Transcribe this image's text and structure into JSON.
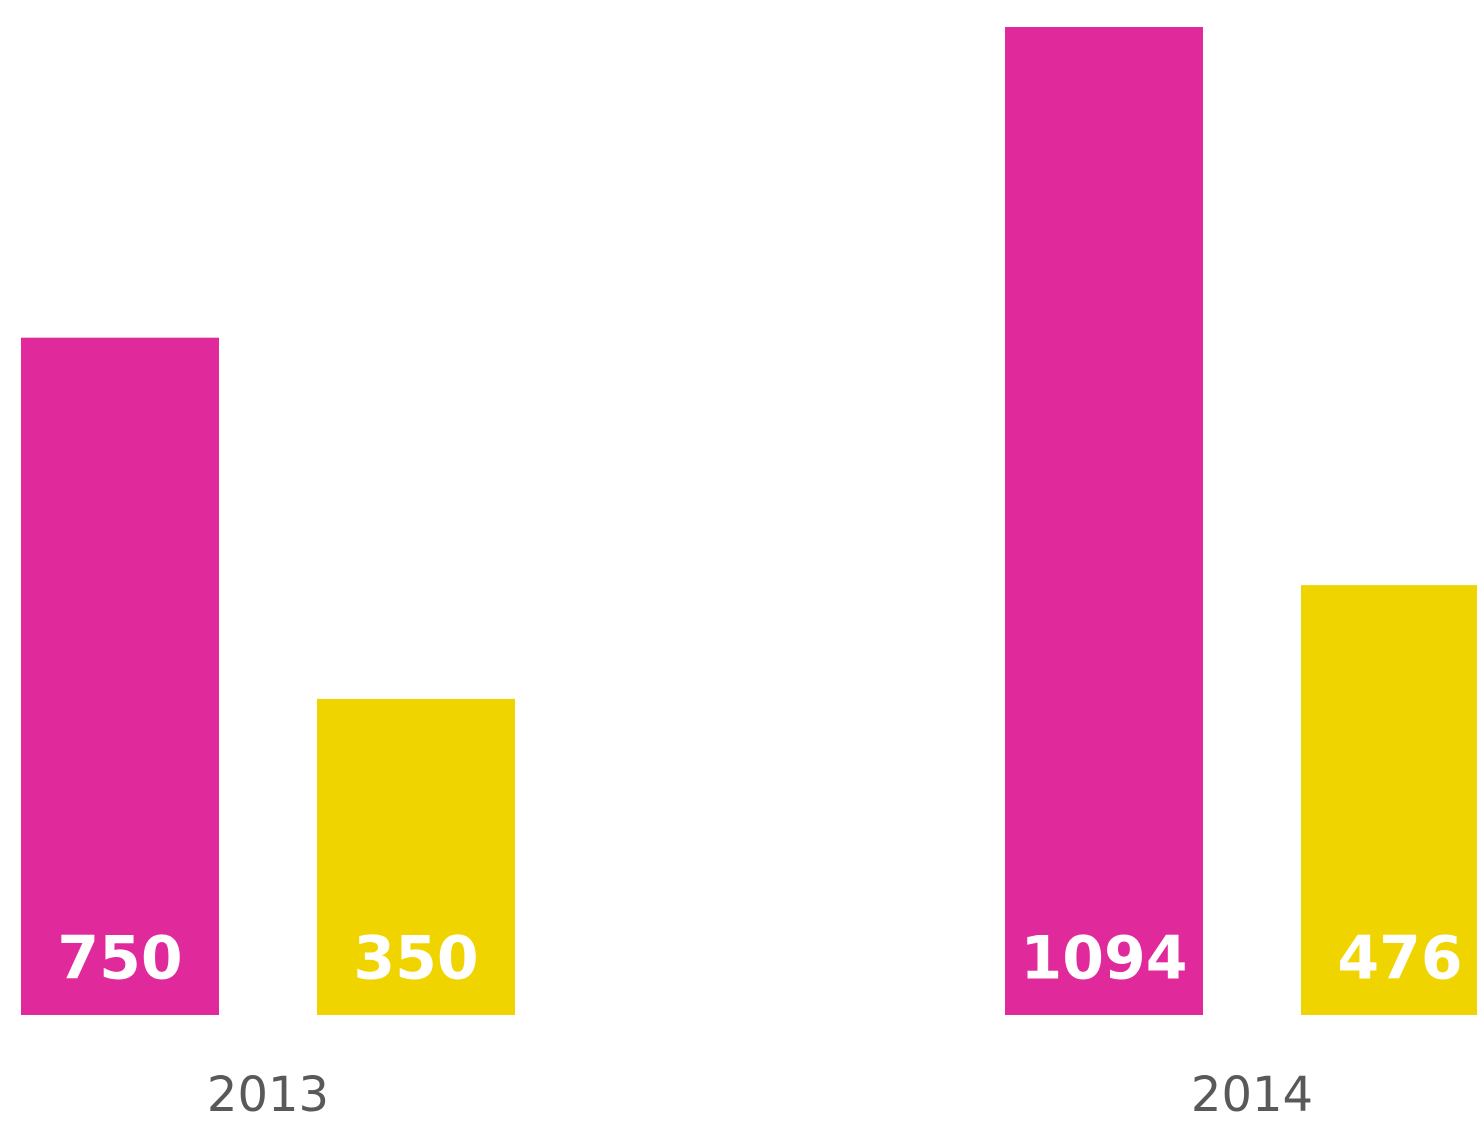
{
  "chart_data": {
    "type": "bar",
    "categories": [
      "2013",
      "2014"
    ],
    "series": [
      {
        "color": "#e0299a",
        "values": [
          750,
          1094
        ]
      },
      {
        "color": "#f0d400",
        "values": [
          350,
          476
        ]
      }
    ]
  }
}
